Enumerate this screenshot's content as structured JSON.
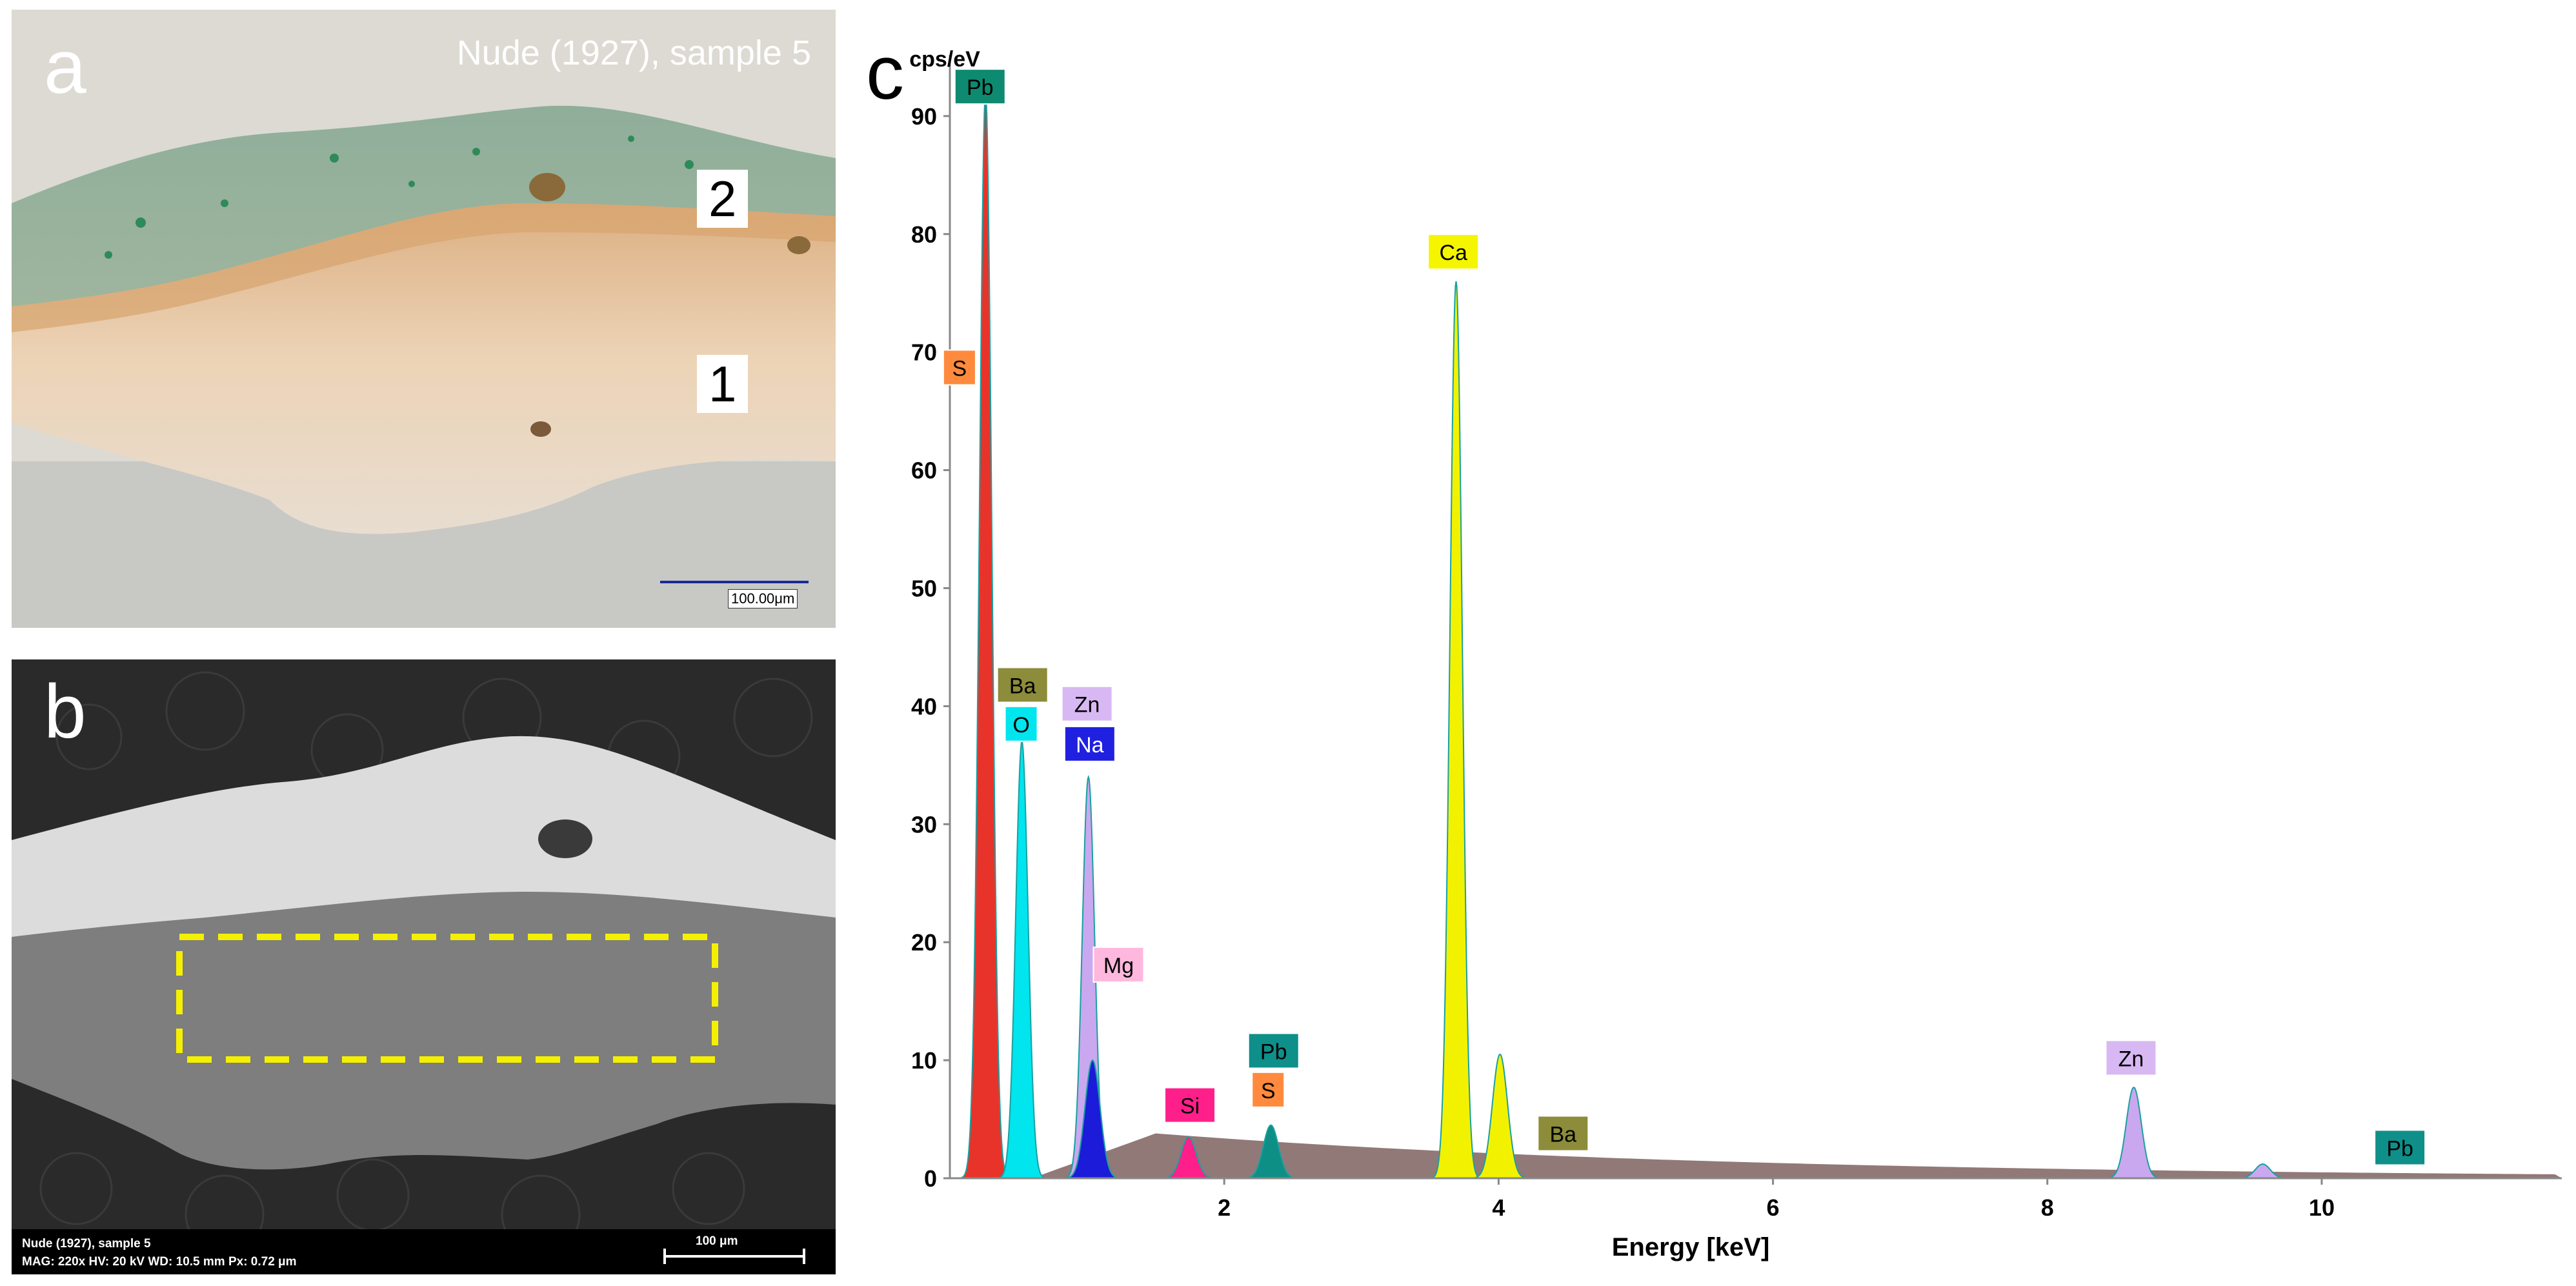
{
  "panel_a": {
    "letter": "a",
    "title": "Nude (1927), sample 5",
    "layer_labels": [
      "2",
      "1"
    ],
    "scale_label": "100.00μm"
  },
  "panel_b": {
    "letter": "b",
    "info_line1": "Nude (1927), sample 5",
    "info_line2": "MAG: 220x   HV: 20 kV   WD: 10.5 mm   Px: 0.72 μm",
    "scale_label": "100 μm"
  },
  "panel_c": {
    "letter": "c"
  },
  "chart_data": {
    "type": "line",
    "title": "",
    "ylabel": "cps/eV",
    "xlabel": "Energy [keV]",
    "xlim": [
      0,
      11.75
    ],
    "ylim": [
      0,
      93
    ],
    "x_ticks": [
      2,
      4,
      6,
      8,
      10
    ],
    "y_ticks": [
      0,
      10,
      20,
      30,
      40,
      50,
      60,
      70,
      80,
      90
    ],
    "peaks": [
      {
        "element": "Pb",
        "energy": 0.26,
        "height": 92,
        "color": "#e8332a"
      },
      {
        "element": "O",
        "energy": 0.525,
        "height": 37,
        "color": "#00e5ee"
      },
      {
        "element": "Zn",
        "energy": 1.01,
        "height": 34,
        "color": "#c9a8f0"
      },
      {
        "element": "Na",
        "energy": 1.04,
        "height": 10,
        "color": "#1b1bd9"
      },
      {
        "element": "Si",
        "energy": 1.74,
        "height": 3.5,
        "color": "#ff1f8a"
      },
      {
        "element": "Pb",
        "energy": 2.34,
        "height": 4.5,
        "color": "#0d8f86"
      },
      {
        "element": "Ca",
        "energy": 3.69,
        "height": 76,
        "color": "#f2f200"
      },
      {
        "element": "Ca",
        "energy": 4.01,
        "height": 10.5,
        "color": "#f2f200"
      },
      {
        "element": "Zn",
        "energy": 8.63,
        "height": 7.7,
        "color": "#c9a8f0"
      },
      {
        "element": "Zn",
        "energy": 9.57,
        "height": 1.2,
        "color": "#c9a8f0"
      }
    ],
    "annotations": [
      {
        "label": "Pb",
        "energy": 0.22,
        "y": 92.5,
        "bg": "#0e8a70",
        "fg": "#000000"
      },
      {
        "label": "S",
        "energy": 0.07,
        "y": 68.7,
        "bg": "#ff8a3d",
        "fg": "#000000"
      },
      {
        "label": "Ca",
        "energy": 3.67,
        "y": 78.5,
        "bg": "#f5f500",
        "fg": "#000000"
      },
      {
        "label": "Ba",
        "energy": 0.53,
        "y": 41.8,
        "bg": "#8c8c3a",
        "fg": "#000000"
      },
      {
        "label": "O",
        "energy": 0.52,
        "y": 38.5,
        "bg": "#00e5ee",
        "fg": "#000000"
      },
      {
        "label": "Zn",
        "energy": 1.0,
        "y": 40.2,
        "bg": "#d8b8f2",
        "fg": "#000000"
      },
      {
        "label": "Na",
        "energy": 1.02,
        "y": 36.8,
        "bg": "#2020e0",
        "fg": "#ffffff"
      },
      {
        "label": "Mg",
        "energy": 1.23,
        "y": 18.1,
        "bg": "#ffb8dd",
        "fg": "#000000"
      },
      {
        "label": "Si",
        "energy": 1.75,
        "y": 6.2,
        "bg": "#ff1f8a",
        "fg": "#000000"
      },
      {
        "label": "Pb",
        "energy": 2.36,
        "y": 10.8,
        "bg": "#0e8f8a",
        "fg": "#000000"
      },
      {
        "label": "S",
        "energy": 2.32,
        "y": 7.5,
        "bg": "#ff8a3d",
        "fg": "#000000"
      },
      {
        "label": "Ba",
        "energy": 4.47,
        "y": 3.8,
        "bg": "#8c8c3a",
        "fg": "#000000"
      },
      {
        "label": "Zn",
        "energy": 8.61,
        "y": 10.2,
        "bg": "#d8b8f2",
        "fg": "#000000"
      },
      {
        "label": "Pb",
        "energy": 10.57,
        "y": 2.6,
        "bg": "#0e8f8a",
        "fg": "#000000"
      }
    ],
    "background_color": "#8b7270",
    "spectrum_line_color": "#1aa0a0"
  }
}
